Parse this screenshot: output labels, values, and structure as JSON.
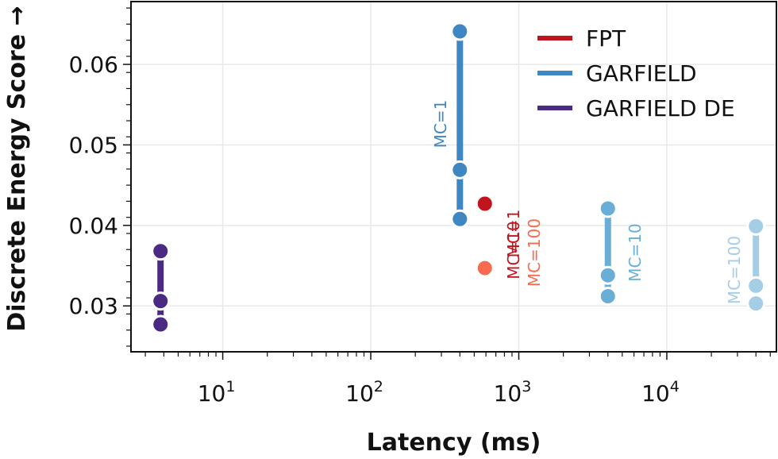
{
  "chart_data": {
    "type": "scatter",
    "xlabel": "Latency (ms)",
    "ylabel": "Discrete Energy Score →",
    "xscale": "log",
    "xlim": [
      2.4,
      55000
    ],
    "ylim": [
      0.0243,
      0.0678
    ],
    "grid": true,
    "legend_position": "top-right",
    "x_ticks": [
      10,
      100,
      1000,
      10000
    ],
    "x_tick_labels": [
      {
        "base": "10",
        "exp": "1"
      },
      {
        "base": "10",
        "exp": "2"
      },
      {
        "base": "10",
        "exp": "3"
      },
      {
        "base": "10",
        "exp": "4"
      }
    ],
    "y_ticks": [
      0.03,
      0.04,
      0.05,
      0.06
    ],
    "y_tick_labels": [
      "0.03",
      "0.04",
      "0.05",
      "0.06"
    ],
    "series": [
      {
        "name": "FPT",
        "color": "#c0141f"
      },
      {
        "name": "GARFIELD",
        "color": "#3f87c3"
      },
      {
        "name": "GARFIELD DE",
        "color": "#4a2a83"
      }
    ],
    "groups": [
      {
        "series": "GARFIELD DE",
        "x": 3.8,
        "y": [
          0.0277,
          0.0306,
          0.0368
        ],
        "color": "#4a2a83",
        "label": ""
      },
      {
        "series": "GARFIELD",
        "x": 400,
        "y": [
          0.0408,
          0.0469,
          0.0641
        ],
        "color": "#3f87c3",
        "label": "MC=1"
      },
      {
        "series": "GARFIELD",
        "x": 4000,
        "y": [
          0.0312,
          0.0338,
          0.0421
        ],
        "color": "#6aaed6",
        "label": "MC=10"
      },
      {
        "series": "GARFIELD",
        "x": 40000,
        "y": [
          0.0303,
          0.0325,
          0.0399
        ],
        "color": "#a6cde6",
        "label": "MC=100"
      },
      {
        "series": "FPT",
        "x": 590,
        "y": [
          0.0427
        ],
        "color": "#c0141f",
        "label": "MC=1"
      },
      {
        "series": "FPT",
        "x": 590,
        "y": [
          0.0427
        ],
        "color": "#c0141f",
        "label": "MC=10"
      },
      {
        "series": "FPT",
        "x": 590,
        "y": [
          0.0347
        ],
        "color": "#f96b4f",
        "label": "MC=100"
      }
    ]
  }
}
